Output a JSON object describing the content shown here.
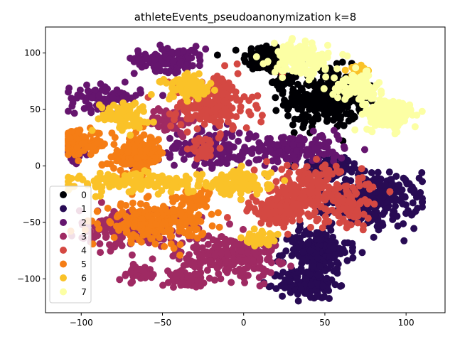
{
  "chart_data": {
    "type": "scatter",
    "title": "athleteEvents_pseudoanonymization k=8",
    "xlabel": "",
    "ylabel": "",
    "xlim": [
      -122,
      124
    ],
    "ylim": [
      -130,
      123
    ],
    "x_ticks": [
      "−100",
      "−50",
      "0",
      "50",
      "100"
    ],
    "x_tick_values": [
      -100,
      -50,
      0,
      50,
      100
    ],
    "y_ticks": [
      "−100",
      "−50",
      "0",
      "50",
      "100"
    ],
    "y_tick_values": [
      -100,
      -50,
      0,
      50,
      100
    ],
    "grid": false,
    "legend_position": "lower-left",
    "series": [
      {
        "name": "0",
        "color": "#000004",
        "clusters": [
          [
            15,
            95,
            14,
            12,
            110
          ],
          [
            50,
            60,
            22,
            24,
            300
          ],
          [
            25,
            75,
            6,
            5,
            30
          ]
        ]
      },
      {
        "name": "1",
        "color": "#280b54",
        "clusters": [
          [
            80,
            -30,
            25,
            22,
            260
          ],
          [
            45,
            -75,
            18,
            18,
            200
          ],
          [
            40,
            -105,
            16,
            12,
            140
          ],
          [
            55,
            0,
            18,
            8,
            80
          ]
        ]
      },
      {
        "name": "2",
        "color": "#65156e",
        "clusters": [
          [
            -45,
            95,
            20,
            10,
            120
          ],
          [
            -85,
            60,
            20,
            10,
            90
          ],
          [
            -20,
            15,
            30,
            15,
            180
          ],
          [
            35,
            15,
            25,
            12,
            130
          ],
          [
            -105,
            10,
            6,
            6,
            20
          ]
        ]
      },
      {
        "name": "3",
        "color": "#9f2a63",
        "clusters": [
          [
            -10,
            -80,
            28,
            18,
            230
          ],
          [
            -70,
            -55,
            28,
            15,
            170
          ],
          [
            -65,
            -95,
            12,
            6,
            60
          ],
          [
            -35,
            -100,
            10,
            6,
            50
          ],
          [
            -45,
            40,
            12,
            10,
            60
          ]
        ]
      },
      {
        "name": "4",
        "color": "#d44842",
        "clusters": [
          [
            -20,
            55,
            22,
            22,
            220
          ],
          [
            40,
            -25,
            30,
            22,
            260
          ],
          [
            20,
            -40,
            15,
            12,
            90
          ],
          [
            -25,
            15,
            8,
            6,
            30
          ],
          [
            65,
            -40,
            10,
            15,
            40
          ]
        ]
      },
      {
        "name": "5",
        "color": "#f57d15",
        "clusters": [
          [
            -100,
            20,
            14,
            10,
            100
          ],
          [
            -65,
            10,
            15,
            15,
            160
          ],
          [
            -55,
            -50,
            28,
            15,
            220
          ],
          [
            -30,
            -30,
            10,
            10,
            40
          ]
        ]
      },
      {
        "name": "6",
        "color": "#fac228",
        "clusters": [
          [
            -75,
            45,
            14,
            10,
            90
          ],
          [
            -60,
            -15,
            40,
            8,
            180
          ],
          [
            0,
            -15,
            15,
            10,
            100
          ],
          [
            -35,
            70,
            15,
            10,
            70
          ],
          [
            10,
            -65,
            10,
            6,
            40
          ],
          [
            70,
            85,
            6,
            4,
            20
          ]
        ]
      },
      {
        "name": "7",
        "color": "#fcffa4",
        "clusters": [
          [
            35,
            95,
            16,
            12,
            160
          ],
          [
            90,
            45,
            15,
            12,
            160
          ],
          [
            70,
            70,
            14,
            10,
            100
          ]
        ]
      }
    ]
  }
}
